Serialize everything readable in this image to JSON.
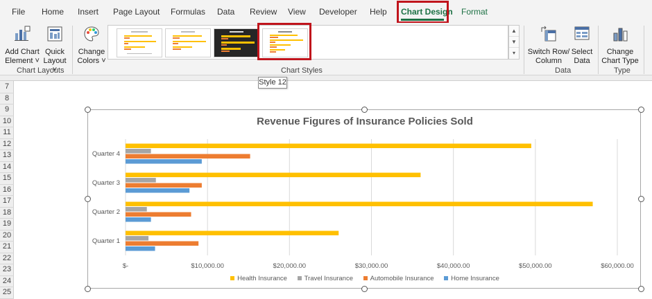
{
  "ribbon_tabs": [
    {
      "label": "File"
    },
    {
      "label": "Home"
    },
    {
      "label": "Insert"
    },
    {
      "label": "Page Layout"
    },
    {
      "label": "Formulas"
    },
    {
      "label": "Data"
    },
    {
      "label": "Review"
    },
    {
      "label": "View"
    },
    {
      "label": "Developer"
    },
    {
      "label": "Help"
    },
    {
      "label": "Chart Design",
      "active": true
    },
    {
      "label": "Format"
    }
  ],
  "ribbon": {
    "add_chart_element": [
      "Add Chart",
      "Element ˅"
    ],
    "quick_layout": [
      "Quick",
      "Layout ˅"
    ],
    "change_colors": [
      "Change",
      "Colors ˅"
    ],
    "switch_row_column": [
      "Switch Row/",
      "Column"
    ],
    "select_data": [
      "Select",
      "Data"
    ],
    "change_chart_type": [
      "Change",
      "Chart Type"
    ],
    "groups": {
      "chart_layouts": "Chart Layouts",
      "chart_styles": "Chart Styles",
      "data": "Data",
      "type": "Type"
    }
  },
  "tooltip": "Style 12",
  "row_numbers": [
    "7",
    "8",
    "9",
    "10",
    "11",
    "12",
    "13",
    "14",
    "15",
    "16",
    "17",
    "18",
    "19",
    "20",
    "21",
    "22",
    "23",
    "24",
    "25"
  ],
  "colors": {
    "health": "#FFC000",
    "travel": "#A5A5A5",
    "automobile": "#ED7D31",
    "home": "#5B9BD5",
    "accent_green": "#1E7145",
    "highlight_red": "#C0141C"
  },
  "chart_data": {
    "type": "bar",
    "orientation": "horizontal",
    "title": "Revenue Figures of Insurance Policies Sold",
    "categories": [
      "Quarter 1",
      "Quarter 2",
      "Quarter 3",
      "Quarter 4"
    ],
    "series": [
      {
        "name": "Health Insurance",
        "values": [
          26000,
          57000,
          36000,
          49500
        ]
      },
      {
        "name": "Travel Insurance",
        "values": [
          2800,
          2600,
          3700,
          3100
        ]
      },
      {
        "name": "Automobile Insurance",
        "values": [
          8900,
          8000,
          9300,
          15200
        ]
      },
      {
        "name": "Home Insurance",
        "values": [
          3600,
          3100,
          7800,
          9300
        ]
      }
    ],
    "xlim": [
      0,
      60000
    ],
    "tick_labels": [
      "$-",
      "$10,000.00",
      "$20,000.00",
      "$30,000.00",
      "$40,000.00",
      "$50,000.00",
      "$60,000.00"
    ],
    "gridlines": true,
    "legend_position": "bottom"
  }
}
